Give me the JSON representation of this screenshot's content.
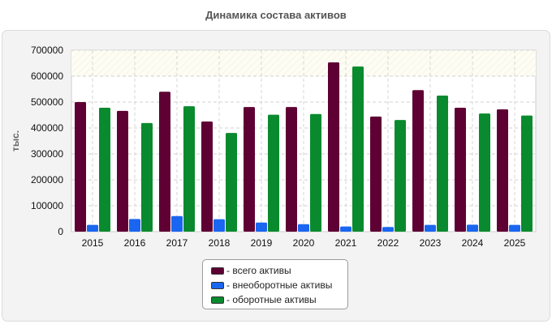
{
  "chart_data": {
    "type": "bar",
    "title": "Динамика состава активов",
    "ylabel": "тыс.",
    "xlabel": "",
    "categories": [
      "2015",
      "2016",
      "2017",
      "2018",
      "2019",
      "2020",
      "2021",
      "2022",
      "2023",
      "2024",
      "2025"
    ],
    "ylim": [
      0,
      700000
    ],
    "yticks": [
      0,
      100000,
      200000,
      300000,
      400000,
      500000,
      600000,
      700000
    ],
    "grid": true,
    "legend_position": "bottom-center",
    "series": [
      {
        "name": "- всего активы",
        "color": "#5e0033",
        "values": [
          500000,
          466000,
          540000,
          425000,
          481000,
          481000,
          653000,
          444000,
          546000,
          478000,
          472000
        ]
      },
      {
        "name": "- внеоборотные активы",
        "color": "#1a66f0",
        "values": [
          26000,
          49000,
          60000,
          48000,
          35000,
          29000,
          20000,
          18000,
          26000,
          27000,
          26000
        ]
      },
      {
        "name": "- оборотные активы",
        "color": "#0a8a2e",
        "values": [
          478000,
          419000,
          484000,
          381000,
          451000,
          454000,
          637000,
          431000,
          525000,
          456000,
          448000
        ]
      }
    ]
  }
}
